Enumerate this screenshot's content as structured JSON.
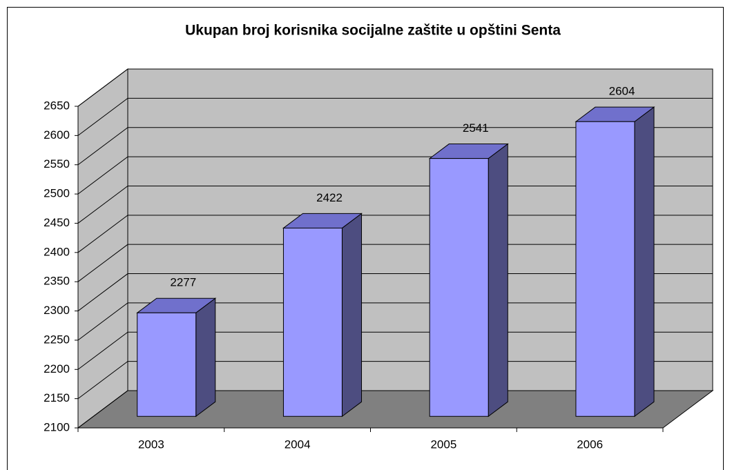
{
  "chart_data": {
    "type": "bar3d",
    "title": "Ukupan broj korisnika socijalne zaštite u opštini Senta",
    "categories": [
      "2003",
      "2004",
      "2005",
      "2006"
    ],
    "values": [
      2277,
      2422,
      2541,
      2604
    ],
    "color": "#9999ff",
    "ylim": [
      2100,
      2650
    ],
    "yticks": [
      2100,
      2150,
      2200,
      2250,
      2300,
      2350,
      2400,
      2450,
      2500,
      2550,
      2600,
      2650
    ],
    "grid": true
  }
}
